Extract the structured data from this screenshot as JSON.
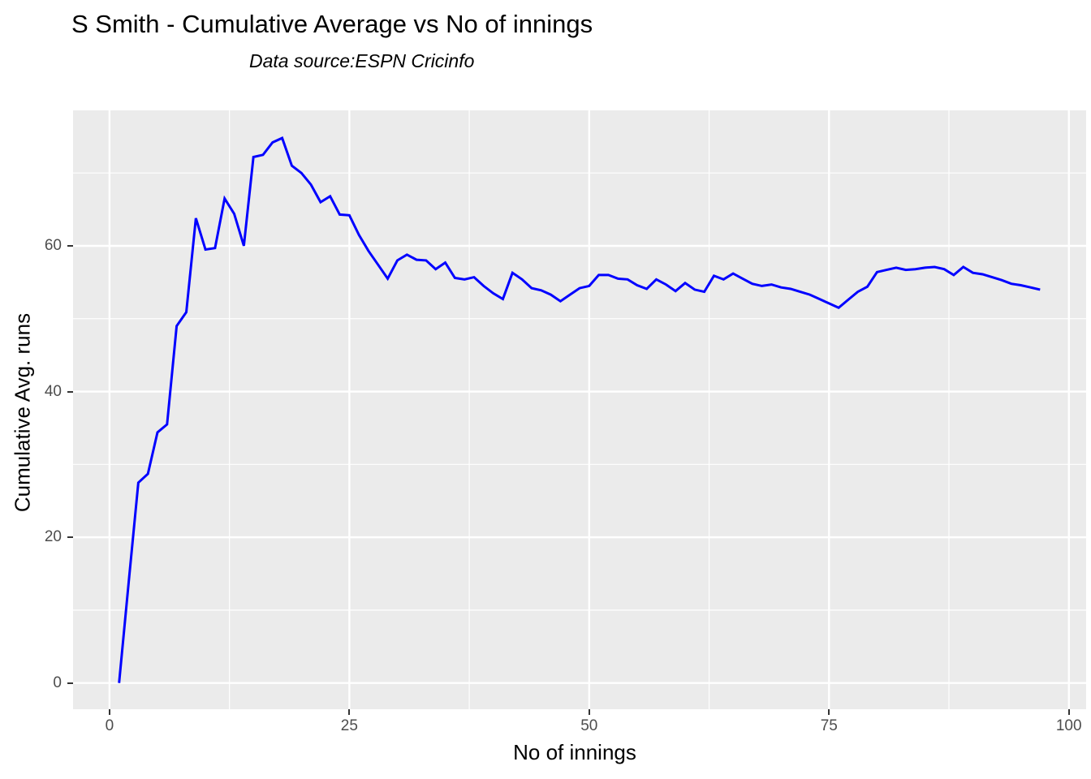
{
  "header": {
    "title": "S Smith - Cumulative Average vs No of innings",
    "subtitle": "Data source:ESPN Cricinfo"
  },
  "chart_data": {
    "type": "line",
    "title": "S Smith - Cumulative Average vs No of innings",
    "subtitle": "Data source:ESPN Cricinfo",
    "xlabel": "No of innings",
    "ylabel": "Cumulative Avg. runs",
    "legend": false,
    "grid": true,
    "panel_background": "#EBEBEB",
    "gridline_color": "#FFFFFF",
    "line_color": "#0000FF",
    "tick_label_color": "#4D4D4D",
    "tick_mark_color": "#333333",
    "xlim": [
      -3.8,
      101.8
    ],
    "ylim": [
      -3.6,
      78.6
    ],
    "x_major_ticks": [
      0,
      25,
      50,
      75,
      100
    ],
    "x_tick_labels": [
      "0",
      "25",
      "50",
      "75",
      "100"
    ],
    "x_minor_ticks": [
      12.5,
      37.5,
      62.5,
      87.5
    ],
    "y_major_ticks": [
      0,
      20,
      40,
      60
    ],
    "y_tick_labels": [
      "0",
      "20",
      "40",
      "60"
    ],
    "y_minor_ticks": [
      10,
      30,
      50,
      70
    ],
    "x": [
      1,
      2,
      3,
      4,
      5,
      6,
      7,
      8,
      9,
      10,
      11,
      12,
      13,
      14,
      15,
      16,
      17,
      18,
      19,
      20,
      21,
      22,
      23,
      24,
      25,
      26,
      27,
      28,
      29,
      30,
      31,
      32,
      33,
      34,
      35,
      36,
      37,
      38,
      39,
      40,
      41,
      42,
      43,
      44,
      45,
      46,
      47,
      48,
      49,
      50,
      51,
      52,
      53,
      54,
      55,
      56,
      57,
      58,
      59,
      60,
      61,
      62,
      63,
      64,
      65,
      66,
      67,
      68,
      69,
      70,
      71,
      72,
      73,
      74,
      75,
      76,
      77,
      78,
      79,
      80,
      81,
      82,
      83,
      84,
      85,
      86,
      87,
      88,
      89,
      90,
      91,
      92,
      93,
      94,
      95,
      96,
      97
    ],
    "series": [
      {
        "name": "Cumulative Average runs",
        "values": [
          0,
          13.8,
          27.5,
          28.7,
          34.4,
          35.5,
          49.0,
          50.9,
          63.8,
          59.5,
          59.7,
          66.5,
          64.4,
          60.0,
          72.2,
          72.5,
          74.2,
          74.8,
          71.0,
          70.0,
          68.4,
          66.0,
          66.8,
          64.3,
          64.2,
          61.5,
          59.3,
          57.4,
          55.5,
          58.0,
          58.8,
          58.1,
          58.0,
          56.8,
          57.7,
          55.6,
          55.4,
          55.7,
          54.5,
          53.5,
          52.7,
          56.3,
          55.4,
          54.2,
          53.9,
          53.3,
          52.4,
          53.3,
          54.2,
          54.5,
          56.0,
          56.0,
          55.5,
          55.4,
          54.6,
          54.1,
          55.4,
          54.7,
          53.8,
          54.9,
          54.0,
          53.7,
          55.9,
          55.4,
          56.2,
          55.5,
          54.8,
          54.5,
          54.7,
          54.3,
          54.1,
          53.7,
          53.3,
          52.7,
          52.1,
          51.5,
          52.6,
          53.7,
          54.4,
          56.4,
          56.7,
          57.0,
          56.7,
          56.8,
          57.0,
          57.1,
          56.8,
          56.0,
          57.1,
          56.3,
          56.1,
          55.7,
          55.3,
          54.8,
          54.6,
          54.3,
          54.0
        ]
      }
    ]
  }
}
